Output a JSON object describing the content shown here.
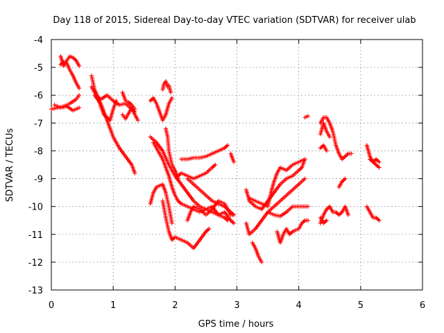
{
  "chart_data": {
    "type": "scatter",
    "title": "Day 118 of 2015, Sidereal Day-to-day VTEC variation (SDTVAR) for receiver ulab",
    "xlabel": "GPS time / hours",
    "ylabel": "SDTVAR / TECUs",
    "xlim": [
      0,
      6
    ],
    "ylim": [
      -13,
      -4
    ],
    "xticks": [
      "0",
      "1",
      "2",
      "3",
      "4",
      "5",
      "6"
    ],
    "yticks": [
      "-4",
      "-5",
      "-6",
      "-7",
      "-8",
      "-9",
      "-10",
      "-11",
      "-12",
      "-13"
    ],
    "grid": true,
    "marker": "plus",
    "color": "#ff0000",
    "series": [
      {
        "name": "s1",
        "x": [
          0.0,
          0.1,
          0.2,
          0.3,
          0.4,
          0.45
        ],
        "y": [
          -6.5,
          -6.45,
          -6.4,
          -6.3,
          -6.15,
          -6.0
        ]
      },
      {
        "name": "s2",
        "x": [
          0.05,
          0.15,
          0.25,
          0.35,
          0.45
        ],
        "y": [
          -6.35,
          -6.45,
          -6.4,
          -6.55,
          -6.45
        ]
      },
      {
        "name": "s3",
        "x": [
          0.15,
          0.2,
          0.25,
          0.3,
          0.35,
          0.4,
          0.45
        ],
        "y": [
          -4.6,
          -4.95,
          -4.75,
          -4.6,
          -4.65,
          -4.75,
          -4.95
        ]
      },
      {
        "name": "s4",
        "x": [
          0.15,
          0.2,
          0.25,
          0.3,
          0.35,
          0.4,
          0.45
        ],
        "y": [
          -4.9,
          -4.8,
          -4.85,
          -5.1,
          -5.3,
          -5.55,
          -5.75
        ]
      },
      {
        "name": "s5",
        "x": [
          0.65,
          0.7,
          0.75,
          0.8,
          0.9,
          1.0,
          1.1,
          1.2,
          1.3,
          1.35
        ],
        "y": [
          -5.3,
          -5.8,
          -6.05,
          -6.15,
          -6.0,
          -6.2,
          -6.35,
          -6.3,
          -6.5,
          -6.6
        ]
      },
      {
        "name": "s6",
        "x": [
          0.65,
          0.7,
          0.75,
          0.8,
          0.85,
          0.9,
          0.95,
          1.0,
          1.05
        ],
        "y": [
          -5.7,
          -5.9,
          -6.1,
          -6.4,
          -6.7,
          -6.8,
          -6.9,
          -6.5,
          -6.2
        ]
      },
      {
        "name": "s7",
        "x": [
          0.7,
          0.8,
          0.9,
          1.0,
          1.1,
          1.2,
          1.3,
          1.35
        ],
        "y": [
          -6.0,
          -6.3,
          -6.9,
          -7.5,
          -7.9,
          -8.2,
          -8.5,
          -8.8
        ]
      },
      {
        "name": "s8",
        "x": [
          1.15,
          1.2,
          1.25,
          1.3,
          1.35,
          1.4
        ],
        "y": [
          -6.7,
          -6.85,
          -6.65,
          -6.45,
          -6.7,
          -6.9
        ]
      },
      {
        "name": "s9",
        "x": [
          1.15,
          1.2,
          1.25,
          1.3,
          1.35
        ],
        "y": [
          -5.9,
          -6.2,
          -6.25,
          -6.35,
          -6.5
        ]
      },
      {
        "name": "s10",
        "x": [
          1.6,
          1.65,
          1.7,
          1.75,
          1.8,
          1.85,
          1.9,
          1.95
        ],
        "y": [
          -6.2,
          -6.1,
          -6.3,
          -6.6,
          -6.9,
          -6.7,
          -6.3,
          -6.1
        ]
      },
      {
        "name": "s11",
        "x": [
          1.8,
          1.82,
          1.85,
          1.88,
          1.9,
          1.93
        ],
        "y": [
          -5.8,
          -5.6,
          -5.5,
          -5.7,
          -5.65,
          -5.9
        ]
      },
      {
        "name": "s12",
        "x": [
          1.6,
          1.7,
          1.8,
          1.9,
          2.0,
          2.1,
          2.2,
          2.3,
          2.4,
          2.5,
          2.6,
          2.7,
          2.8,
          2.85
        ],
        "y": [
          -7.5,
          -7.7,
          -8.0,
          -8.5,
          -8.9,
          -9.2,
          -9.5,
          -9.8,
          -10.0,
          -10.1,
          -10.2,
          -10.3,
          -10.4,
          -10.5
        ]
      },
      {
        "name": "s13",
        "x": [
          1.65,
          1.7,
          1.75,
          1.8,
          1.85,
          1.9,
          1.95,
          2.0,
          2.05,
          2.1,
          2.2,
          2.3,
          2.4,
          2.5,
          2.6,
          2.7,
          2.8,
          2.9,
          2.95
        ],
        "y": [
          -7.7,
          -7.9,
          -8.1,
          -8.3,
          -8.6,
          -8.9,
          -9.3,
          -9.6,
          -9.8,
          -9.9,
          -10.0,
          -10.1,
          -10.2,
          -10.1,
          -10.0,
          -10.3,
          -10.2,
          -10.5,
          -10.6
        ]
      },
      {
        "name": "s14",
        "x": [
          1.6,
          1.65,
          1.7,
          1.8,
          1.85,
          1.9,
          1.95
        ],
        "y": [
          -9.9,
          -9.5,
          -9.3,
          -9.2,
          -9.5,
          -10.0,
          -10.6
        ]
      },
      {
        "name": "s15",
        "x": [
          1.8,
          1.85,
          1.9,
          1.95,
          2.0,
          2.1,
          2.2,
          2.3,
          2.4,
          2.5,
          2.55
        ],
        "y": [
          -9.8,
          -10.4,
          -10.9,
          -11.2,
          -11.1,
          -11.2,
          -11.3,
          -11.5,
          -11.2,
          -10.9,
          -10.8
        ]
      },
      {
        "name": "s16",
        "x": [
          1.85,
          1.88,
          1.9,
          1.95,
          2.0,
          2.05
        ],
        "y": [
          -7.2,
          -7.5,
          -8.0,
          -8.5,
          -8.7,
          -9.0
        ]
      },
      {
        "name": "s17",
        "x": [
          2.1,
          2.2,
          2.3,
          2.4,
          2.5,
          2.6,
          2.7,
          2.8,
          2.85
        ],
        "y": [
          -8.3,
          -8.3,
          -8.25,
          -8.25,
          -8.2,
          -8.1,
          -8.0,
          -7.9,
          -7.8
        ]
      },
      {
        "name": "s18",
        "x": [
          2.05,
          2.1,
          2.2,
          2.3,
          2.4,
          2.5,
          2.6,
          2.65
        ],
        "y": [
          -8.9,
          -8.8,
          -8.9,
          -9.0,
          -8.9,
          -8.8,
          -8.6,
          -8.5
        ]
      },
      {
        "name": "s19",
        "x": [
          2.2,
          2.3,
          2.4,
          2.5,
          2.6,
          2.7,
          2.8,
          2.9,
          2.95
        ],
        "y": [
          -9.0,
          -9.2,
          -9.4,
          -9.6,
          -9.8,
          -9.9,
          -10.0,
          -10.2,
          -10.3
        ]
      },
      {
        "name": "s20",
        "x": [
          2.2,
          2.25,
          2.3,
          2.4,
          2.5,
          2.6,
          2.7,
          2.8,
          2.9,
          2.95
        ],
        "y": [
          -10.5,
          -10.2,
          -10.0,
          -10.1,
          -10.3,
          -10.1,
          -9.8,
          -9.9,
          -10.3,
          -10.3
        ]
      },
      {
        "name": "s21",
        "x": [
          2.9,
          2.95
        ],
        "y": [
          -8.1,
          -8.4
        ]
      },
      {
        "name": "s22",
        "x": [
          3.15,
          3.2,
          3.3,
          3.4,
          3.5,
          3.6,
          3.7,
          3.8,
          3.9,
          4.0,
          4.05,
          4.1
        ],
        "y": [
          -9.4,
          -9.8,
          -10.0,
          -10.1,
          -9.8,
          -9.5,
          -9.2,
          -9.0,
          -8.9,
          -8.7,
          -8.6,
          -8.3
        ]
      },
      {
        "name": "s23",
        "x": [
          3.2,
          3.3,
          3.4,
          3.5,
          3.55,
          3.6,
          3.65,
          3.7,
          3.8,
          3.9,
          4.0,
          4.1
        ],
        "y": [
          -9.7,
          -9.8,
          -9.9,
          -10.0,
          -9.5,
          -9.1,
          -8.8,
          -8.6,
          -8.7,
          -8.5,
          -8.4,
          -8.3
        ]
      },
      {
        "name": "s24",
        "x": [
          3.15,
          3.2,
          3.3,
          3.4,
          3.5,
          3.6,
          3.7,
          3.8,
          3.9,
          4.0,
          4.1
        ],
        "y": [
          -10.6,
          -11.0,
          -10.8,
          -10.5,
          -10.2,
          -10.0,
          -9.8,
          -9.6,
          -9.4,
          -9.2,
          -9.0
        ]
      },
      {
        "name": "s25",
        "x": [
          3.25,
          3.3,
          3.35,
          3.4
        ],
        "y": [
          -11.3,
          -11.5,
          -11.8,
          -12.0
        ]
      },
      {
        "name": "s26",
        "x": [
          3.5,
          3.6,
          3.7,
          3.8,
          3.9,
          4.0,
          4.1,
          4.15
        ],
        "y": [
          -10.2,
          -10.3,
          -10.35,
          -10.2,
          -10.0,
          -10.0,
          -10.0,
          -10.0
        ]
      },
      {
        "name": "s27",
        "x": [
          3.65,
          3.7,
          3.75,
          3.8,
          3.85,
          3.9,
          4.0,
          4.05,
          4.1,
          4.15
        ],
        "y": [
          -10.9,
          -11.3,
          -11.0,
          -10.8,
          -11.0,
          -10.9,
          -10.8,
          -10.6,
          -10.5,
          -10.5
        ]
      },
      {
        "name": "s28",
        "x": [
          4.1,
          4.15
        ],
        "y": [
          -6.8,
          -6.75
        ]
      },
      {
        "name": "s29",
        "x": [
          4.35,
          4.4,
          4.45,
          4.5,
          4.55,
          4.6,
          4.65,
          4.7,
          4.75,
          4.8,
          4.85
        ],
        "y": [
          -7.0,
          -6.8,
          -6.8,
          -7.0,
          -7.3,
          -7.8,
          -8.1,
          -8.3,
          -8.2,
          -8.1,
          -8.1
        ]
      },
      {
        "name": "s30",
        "x": [
          4.35,
          4.4,
          4.45,
          4.5
        ],
        "y": [
          -7.4,
          -7.0,
          -7.3,
          -7.5
        ]
      },
      {
        "name": "s31",
        "x": [
          4.35,
          4.4,
          4.45
        ],
        "y": [
          -7.9,
          -7.8,
          -8.0
        ]
      },
      {
        "name": "s32",
        "x": [
          4.35,
          4.4,
          4.45,
          4.5,
          4.55,
          4.6,
          4.65,
          4.7,
          4.75,
          4.8
        ],
        "y": [
          -10.6,
          -10.3,
          -10.1,
          -10.0,
          -10.2,
          -10.2,
          -10.3,
          -10.2,
          -10.0,
          -10.3
        ]
      },
      {
        "name": "s33",
        "x": [
          4.35,
          4.4,
          4.45
        ],
        "y": [
          -10.4,
          -10.6,
          -10.5
        ]
      },
      {
        "name": "s34",
        "x": [
          4.65,
          4.7,
          4.75
        ],
        "y": [
          -9.3,
          -9.1,
          -9.0
        ]
      },
      {
        "name": "s35",
        "x": [
          5.1,
          5.15,
          5.2,
          5.25,
          5.3
        ],
        "y": [
          -7.8,
          -8.2,
          -8.4,
          -8.5,
          -8.6
        ]
      },
      {
        "name": "s36",
        "x": [
          5.15,
          5.2,
          5.25,
          5.3
        ],
        "y": [
          -8.3,
          -8.4,
          -8.3,
          -8.4
        ]
      },
      {
        "name": "s37",
        "x": [
          5.1,
          5.15,
          5.2,
          5.25,
          5.3
        ],
        "y": [
          -10.0,
          -10.2,
          -10.4,
          -10.4,
          -10.5
        ]
      }
    ]
  }
}
